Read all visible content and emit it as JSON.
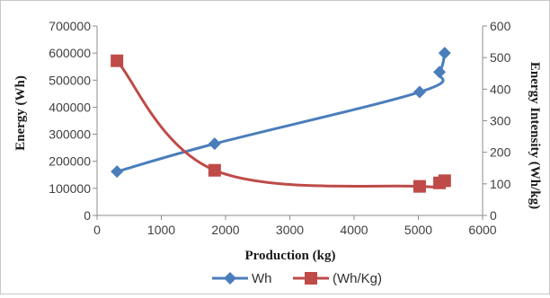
{
  "chart_data": {
    "type": "line",
    "xlabel": "Production (kg)",
    "ylabel": "Energy (Wh)",
    "y2label": "Energy Intensity (Wh/kg)",
    "xlim": [
      0,
      6000
    ],
    "ylim": [
      0,
      700000
    ],
    "y2lim": [
      0,
      600
    ],
    "x_ticks": [
      0,
      1000,
      2000,
      3000,
      4000,
      5000,
      6000
    ],
    "y_ticks": [
      0,
      100000,
      200000,
      300000,
      400000,
      500000,
      600000,
      700000
    ],
    "y2_ticks": [
      0,
      100,
      200,
      300,
      400,
      500,
      600
    ],
    "grid": false,
    "legend_position": "bottom",
    "series": [
      {
        "name": "Wh",
        "axis": "left",
        "marker": "diamond",
        "color": "#4a7ebb",
        "smooth": true,
        "x": [
          310,
          1830,
          5020,
          5330,
          5410
        ],
        "values": [
          162000,
          265000,
          456000,
          530000,
          600000
        ]
      },
      {
        "name": "(Wh/Kg)",
        "axis": "right",
        "marker": "square",
        "color": "#be4b48",
        "smooth": true,
        "x": [
          310,
          1830,
          5020,
          5330,
          5410
        ],
        "values": [
          490,
          143,
          92,
          103,
          110
        ]
      }
    ]
  }
}
